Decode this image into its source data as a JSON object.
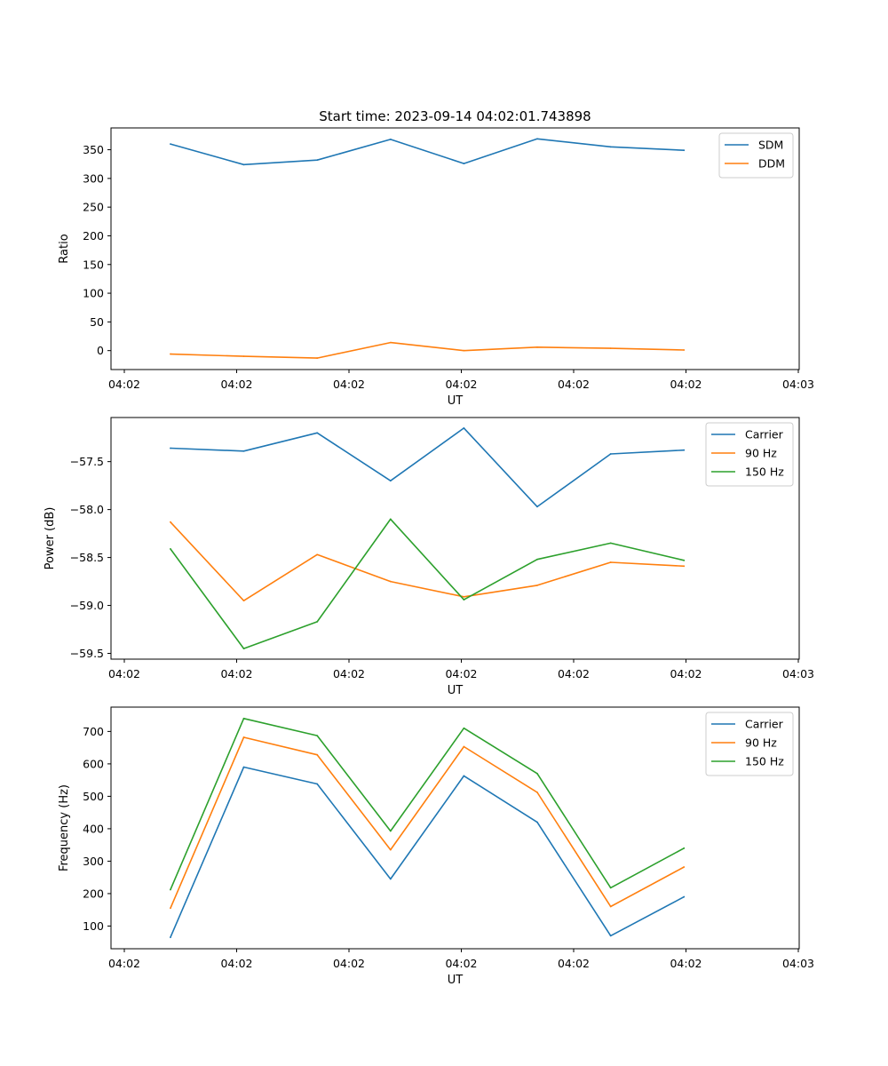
{
  "figure": {
    "title": "Start time: 2023-09-14 04:02:01.743898"
  },
  "chart_data": [
    {
      "type": "line",
      "title": "Start time: 2023-09-14 04:02:01.743898",
      "xlabel": "UT",
      "ylabel": "Ratio",
      "x_tick_labels": [
        "04:02",
        "04:02",
        "04:02",
        "04:02",
        "04:02",
        "04:02",
        "04:03"
      ],
      "y_ticks": [
        0,
        50,
        100,
        150,
        200,
        250,
        300,
        350
      ],
      "ylim": [
        -33,
        388
      ],
      "x": [
        1,
        2,
        3,
        4,
        5,
        6,
        7,
        8
      ],
      "xlim": [
        0.19,
        9.57
      ],
      "legend_position": "top-right",
      "series": [
        {
          "name": "SDM",
          "color": "#1f77b4",
          "values": [
            360,
            324,
            332,
            368,
            326,
            369,
            355,
            349
          ]
        },
        {
          "name": "DDM",
          "color": "#ff7f0e",
          "values": [
            -6,
            -10,
            -13,
            14,
            0,
            6,
            4,
            1
          ]
        }
      ]
    },
    {
      "type": "line",
      "title": "",
      "xlabel": "UT",
      "ylabel": "Power (dB)",
      "x_tick_labels": [
        "04:02",
        "04:02",
        "04:02",
        "04:02",
        "04:02",
        "04:02",
        "04:03"
      ],
      "y_ticks": [
        -59.5,
        -59.0,
        -58.5,
        -58.0,
        -57.5
      ],
      "y_tick_labels": [
        "−59.5",
        "−59.0",
        "−58.5",
        "−58.0",
        "−57.5"
      ],
      "ylim": [
        -59.56,
        -57.04
      ],
      "x": [
        1,
        2,
        3,
        4,
        5,
        6,
        7,
        8
      ],
      "xlim": [
        0.19,
        9.57
      ],
      "legend_position": "top-right",
      "series": [
        {
          "name": "Carrier",
          "color": "#1f77b4",
          "values": [
            -57.36,
            -57.39,
            -57.2,
            -57.7,
            -57.15,
            -57.97,
            -57.42,
            -57.38
          ]
        },
        {
          "name": "90 Hz",
          "color": "#ff7f0e",
          "values": [
            -58.13,
            -58.95,
            -58.47,
            -58.75,
            -58.91,
            -58.79,
            -58.55,
            -58.59
          ]
        },
        {
          "name": "150 Hz",
          "color": "#2ca02c",
          "values": [
            -58.41,
            -59.45,
            -59.17,
            -58.1,
            -58.94,
            -58.52,
            -58.35,
            -58.53
          ]
        }
      ]
    },
    {
      "type": "line",
      "title": "",
      "xlabel": "UT",
      "ylabel": "Frequency (Hz)",
      "x_tick_labels": [
        "04:02",
        "04:02",
        "04:02",
        "04:02",
        "04:02",
        "04:02",
        "04:03"
      ],
      "y_ticks": [
        100,
        200,
        300,
        400,
        500,
        600,
        700
      ],
      "ylim": [
        30,
        775
      ],
      "x": [
        1,
        2,
        3,
        4,
        5,
        6,
        7,
        8
      ],
      "xlim": [
        0.19,
        9.57
      ],
      "legend_position": "top-right",
      "series": [
        {
          "name": "Carrier",
          "color": "#1f77b4",
          "values": [
            65,
            590,
            538,
            245,
            563,
            420,
            70,
            190
          ]
        },
        {
          "name": "90 Hz",
          "color": "#ff7f0e",
          "values": [
            155,
            682,
            628,
            335,
            653,
            512,
            160,
            282
          ]
        },
        {
          "name": "150 Hz",
          "color": "#2ca02c",
          "values": [
            212,
            740,
            687,
            393,
            710,
            570,
            218,
            340
          ]
        }
      ]
    }
  ]
}
